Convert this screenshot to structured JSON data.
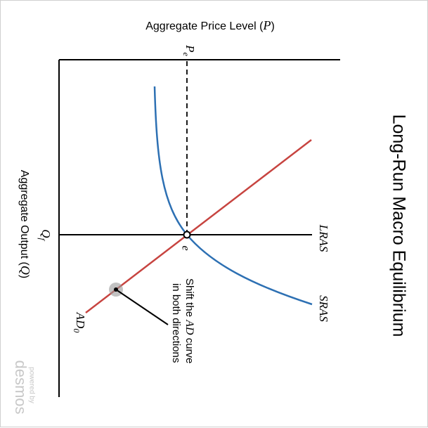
{
  "chart_data": {
    "type": "line",
    "title": "Long-Run Macro Equilibrium",
    "xlabel": "Aggregate Price Level (P)",
    "ylabel": "Aggregate Output (Q)",
    "axis_markers": {
      "price": "P",
      "price_sub": "e",
      "output": "Q",
      "output_sub": "f"
    },
    "equilibrium_label": "e",
    "grid": false,
    "series": [
      {
        "name": "LRAS",
        "color": "#000000"
      },
      {
        "name": "SRAS",
        "color": "#2d70b3"
      },
      {
        "name": "AD",
        "name_sub": "0",
        "color": "#c74440"
      }
    ],
    "annotation": {
      "line1": "Shift the",
      "line1_var": "AD",
      "line1_end": "curve",
      "line2": "in both directions"
    },
    "watermark": {
      "line1": "powered by",
      "line2": "desmos"
    }
  }
}
